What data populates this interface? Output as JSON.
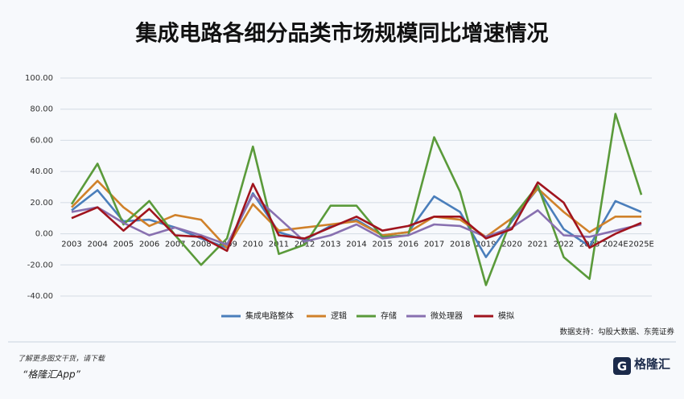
{
  "chart_data": {
    "type": "line",
    "title": "集成电路各细分品类市场规模同比增速情况",
    "source": "数据支持：勾股大数据、东莞证券",
    "categories": [
      "2003",
      "2004",
      "2005",
      "2006",
      "2007",
      "2008",
      "2009",
      "2010",
      "2011",
      "2012",
      "2013",
      "2014",
      "2015",
      "2016",
      "2017",
      "2018",
      "2019",
      "2020",
      "2021",
      "2022",
      "2023",
      "2024E",
      "2025E"
    ],
    "series": [
      {
        "name": "集成电路整体",
        "color": "#4a7ebb",
        "values": [
          15,
          28,
          8,
          9,
          4,
          -3,
          -9,
          26,
          1,
          -4,
          5,
          9,
          -1,
          1,
          24,
          14,
          -15,
          8,
          29,
          3,
          -8,
          21,
          14
        ]
      },
      {
        "name": "逻辑",
        "color": "#d0812a",
        "values": [
          17,
          34,
          17,
          5,
          12,
          9,
          -9,
          19,
          2,
          4,
          6,
          8,
          -1,
          1,
          11,
          9,
          -2,
          10,
          29,
          14,
          1,
          11,
          11
        ]
      },
      {
        "name": "存储",
        "color": "#5a9a3a",
        "values": [
          19,
          45,
          6,
          21,
          -1,
          -20,
          -3,
          56,
          -13,
          -7,
          18,
          18,
          -2,
          -1,
          62,
          27,
          -33,
          10,
          31,
          -15,
          -29,
          77,
          25
        ]
      },
      {
        "name": "微处理器",
        "color": "#8870b0",
        "values": [
          14,
          17,
          7,
          -1,
          4,
          -1,
          -7,
          25,
          10,
          -5,
          -1,
          6,
          -3,
          -1,
          6,
          5,
          -2,
          4,
          15,
          -1,
          -2,
          2,
          6
        ]
      },
      {
        "name": "模拟",
        "color": "#a0141e",
        "values": [
          10,
          17,
          2,
          16,
          -1,
          -2,
          -11,
          32,
          -1,
          -3,
          4,
          11,
          2,
          5,
          11,
          11,
          -3,
          3,
          33,
          20,
          -9,
          0,
          7
        ]
      }
    ],
    "ylim": [
      -40,
      100
    ],
    "yticks": [
      {
        "value": -40,
        "label": "-40.00"
      },
      {
        "value": -20,
        "label": "-20.00"
      },
      {
        "value": 0,
        "label": "0.00"
      },
      {
        "value": 20,
        "label": "20.00"
      },
      {
        "value": 40,
        "label": "40.00"
      },
      {
        "value": 60,
        "label": "60.00"
      },
      {
        "value": 80,
        "label": "80.00"
      },
      {
        "value": 100,
        "label": "100.00"
      }
    ],
    "grid": true,
    "legend": "bottom"
  },
  "footer": {
    "prompt": "了解更多图文干货，请下载",
    "app": "“格隆汇App”",
    "logo": "格隆汇"
  }
}
